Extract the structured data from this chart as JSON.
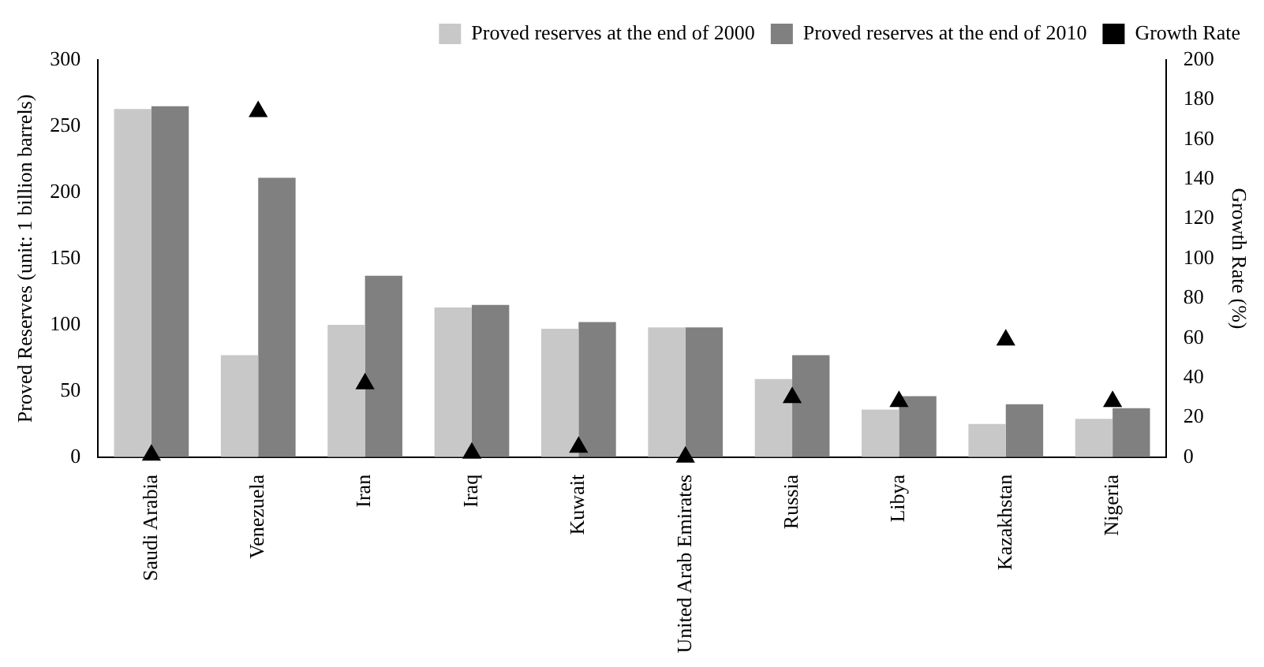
{
  "chart_data": {
    "type": "bar",
    "ylabel": "Proved Reserves (unit: 1 billion barrels)",
    "y2label": "Growth Rate (%)",
    "categories": [
      "Saudi Arabia",
      "Venezuela",
      "Iran",
      "Iraq",
      "Kuwait",
      "United Arab Emirates",
      "Russia",
      "Libya",
      "Kazakhstan",
      "Nigeria"
    ],
    "series": [
      {
        "name": "Proved reserves at the end of 2000",
        "color": "#c8c8c8",
        "values": [
          263,
          77,
          100,
          113,
          97,
          98,
          59,
          36,
          25,
          29
        ]
      },
      {
        "name": "Proved reserves at the end of 2010",
        "color": "#808080",
        "values": [
          265,
          211,
          137,
          115,
          102,
          98,
          77,
          46,
          40,
          37
        ]
      },
      {
        "name": "Growth Rate",
        "type": "scatter",
        "axis": "y2",
        "marker": "triangle",
        "color": "#000000",
        "values": [
          1,
          174,
          37,
          2,
          5,
          0,
          30,
          28,
          59,
          28
        ]
      }
    ],
    "ylim": [
      0,
      300
    ],
    "yticks": [
      0,
      50,
      100,
      150,
      200,
      250,
      300
    ],
    "y2lim": [
      0,
      200
    ],
    "y2ticks": [
      0,
      20,
      40,
      60,
      80,
      100,
      120,
      140,
      160,
      180,
      200
    ],
    "legend": "top right",
    "grid": false
  }
}
